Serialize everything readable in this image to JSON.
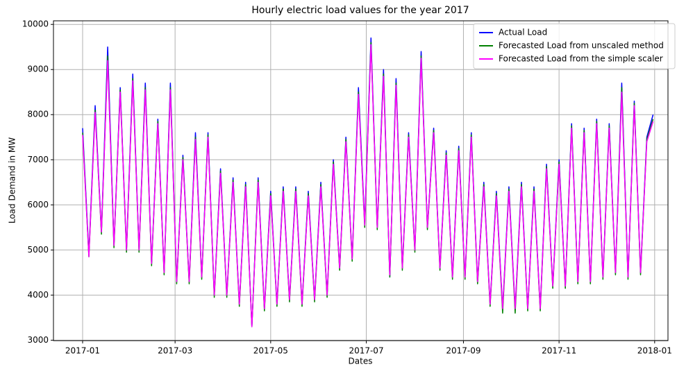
{
  "chart_data": {
    "type": "line",
    "title": "Hourly electric load values for the year 2017",
    "x_label": "Dates",
    "y_label": "Load Demand in MW",
    "x": [
      0,
      4,
      8,
      12,
      16,
      20,
      24,
      28,
      32,
      36,
      40,
      44,
      48,
      52,
      56,
      60,
      64,
      68,
      72,
      76,
      80,
      84,
      88,
      92,
      96,
      100,
      104,
      108,
      112,
      116,
      120,
      124,
      128,
      132,
      136,
      140,
      144,
      148,
      152,
      156,
      160,
      164,
      168,
      172,
      176,
      180,
      184,
      188,
      192,
      196,
      200,
      204,
      208,
      212,
      216,
      220,
      224,
      228,
      232,
      236,
      240,
      244,
      248,
      252,
      256,
      260,
      264,
      268,
      272,
      276,
      280,
      284,
      288,
      292,
      296,
      300,
      304,
      308,
      312,
      316,
      320,
      324,
      328,
      332,
      336,
      340,
      344,
      348,
      352,
      356,
      360,
      364
    ],
    "series": [
      {
        "name": "Actual Load",
        "color": "#0000ff",
        "values": [
          7700,
          4900,
          8200,
          5400,
          9500,
          5100,
          8600,
          5000,
          8900,
          5000,
          8700,
          4700,
          7900,
          4500,
          8700,
          4300,
          7100,
          4300,
          7600,
          4400,
          7600,
          4000,
          6800,
          4000,
          6600,
          3800,
          6500,
          3300,
          6600,
          3700,
          6300,
          3800,
          6400,
          3900,
          6400,
          3800,
          6300,
          3900,
          6500,
          4000,
          7000,
          4600,
          7500,
          4800,
          8600,
          5600,
          9700,
          5500,
          9000,
          4400,
          8800,
          4600,
          7600,
          5000,
          9400,
          5500,
          7700,
          4600,
          7200,
          4400,
          7300,
          4400,
          7600,
          4300,
          6500,
          3800,
          6300,
          3700,
          6400,
          3700,
          6500,
          3700,
          6400,
          3700,
          6900,
          4200,
          7000,
          4200,
          7800,
          4300,
          7700,
          4300,
          7900,
          4400,
          7800,
          4500,
          8700,
          4400,
          8300,
          4500,
          7500,
          8000
        ]
      },
      {
        "name": "Forecasted Load from unscaled method",
        "color": "#008000",
        "values": [
          7600,
          4850,
          8100,
          5350,
          9300,
          5050,
          8550,
          4950,
          8800,
          4950,
          8600,
          4650,
          7850,
          4450,
          8600,
          4250,
          7050,
          4250,
          7500,
          4350,
          7550,
          3950,
          6750,
          3950,
          6550,
          3750,
          6450,
          3300,
          6550,
          3650,
          6250,
          3750,
          6350,
          3850,
          6350,
          3750,
          6250,
          3850,
          6450,
          3950,
          6950,
          4550,
          7450,
          4750,
          8500,
          5500,
          9600,
          5450,
          8900,
          4400,
          8700,
          4550,
          7550,
          4950,
          9300,
          5450,
          7650,
          4550,
          7150,
          4350,
          7250,
          4350,
          7550,
          4250,
          6450,
          3750,
          6250,
          3600,
          6350,
          3600,
          6450,
          3650,
          6350,
          3650,
          6850,
          4150,
          6950,
          4150,
          7750,
          4250,
          7650,
          4250,
          7850,
          4350,
          7750,
          4450,
          8600,
          4350,
          8250,
          4450,
          7450,
          7900
        ]
      },
      {
        "name": "Forecasted Load from the simple scaler",
        "color": "#ff00ff",
        "values": [
          7550,
          4850,
          8050,
          5400,
          9200,
          5100,
          8500,
          5000,
          8750,
          5000,
          8550,
          4700,
          7800,
          4500,
          8550,
          4300,
          7000,
          4300,
          7450,
          4400,
          7500,
          4000,
          6700,
          4000,
          6500,
          3800,
          6400,
          3300,
          6500,
          3700,
          6200,
          3800,
          6300,
          3900,
          6300,
          3800,
          6200,
          3900,
          6400,
          4000,
          6900,
          4600,
          7400,
          4800,
          8450,
          5550,
          9550,
          5500,
          8850,
          4450,
          8650,
          4600,
          7500,
          5000,
          9250,
          5500,
          7600,
          4600,
          7100,
          4400,
          7200,
          4400,
          7500,
          4300,
          6400,
          3800,
          6200,
          3700,
          6300,
          3700,
          6400,
          3700,
          6300,
          3700,
          6800,
          4200,
          6900,
          4200,
          7700,
          4300,
          7600,
          4300,
          7800,
          4400,
          7700,
          4500,
          8500,
          4400,
          8200,
          4500,
          7400,
          7850
        ]
      }
    ],
    "xlim": [
      -18.6,
      373.5
    ],
    "xticks": [
      {
        "value": 0,
        "label": "2017-01"
      },
      {
        "value": 59,
        "label": "2017-03"
      },
      {
        "value": 120,
        "label": "2017-05"
      },
      {
        "value": 181,
        "label": "2017-07"
      },
      {
        "value": 243,
        "label": "2017-09"
      },
      {
        "value": 304,
        "label": "2017-11"
      },
      {
        "value": 365,
        "label": "2018-01"
      }
    ],
    "ylim": [
      2990,
      10080
    ],
    "yticks": [
      3000,
      4000,
      5000,
      6000,
      7000,
      8000,
      9000,
      10000
    ],
    "grid": true,
    "legend": "upper right"
  }
}
